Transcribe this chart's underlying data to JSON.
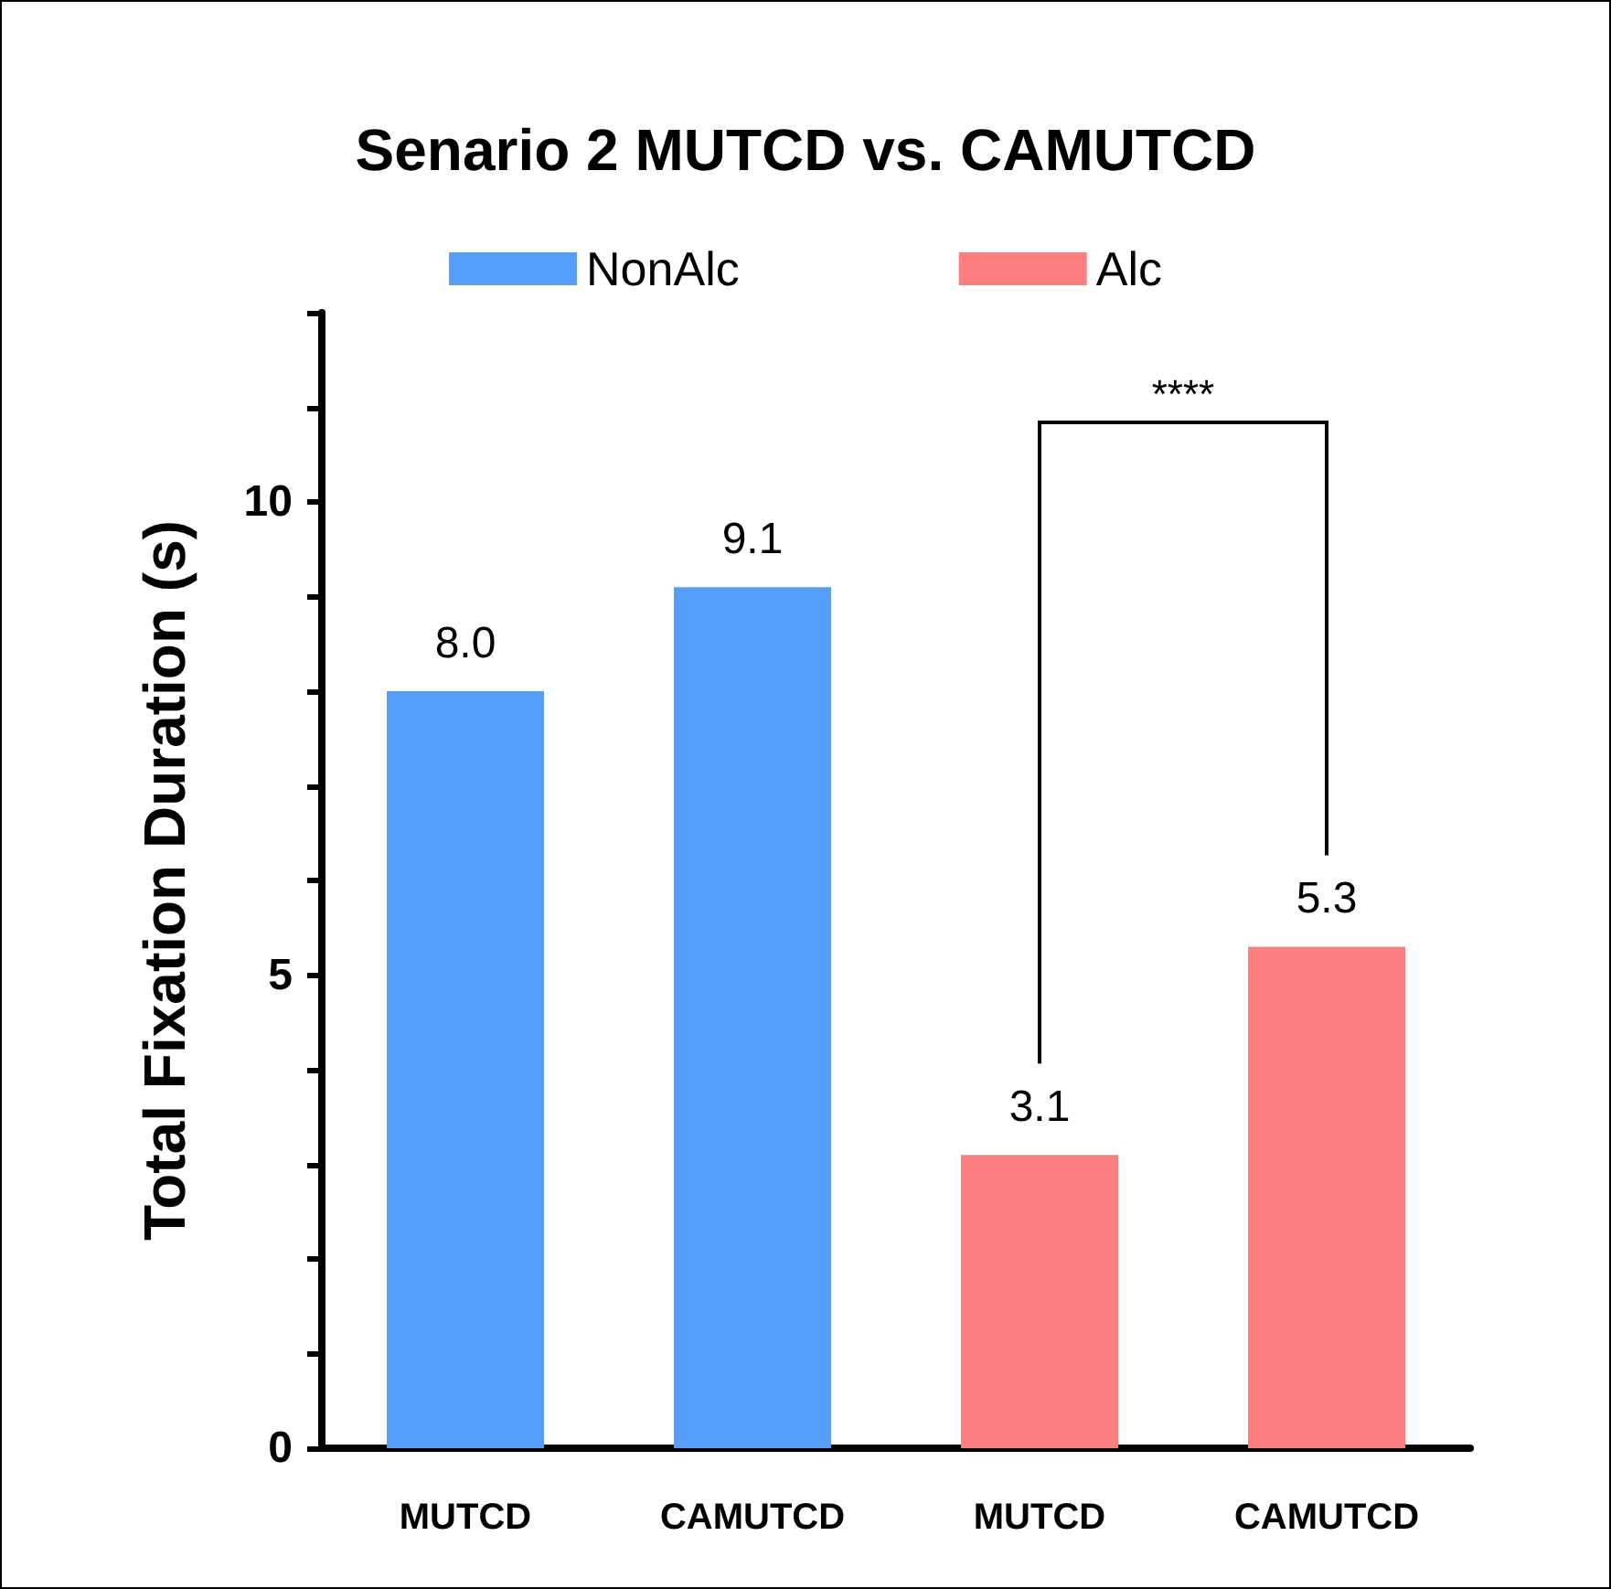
{
  "chart_data": {
    "type": "bar",
    "title": "Senario 2 MUTCD vs. CAMUTCD",
    "ylabel": "Total Fixation Duration (s)",
    "categories": [
      "MUTCD",
      "CAMUTCD",
      "MUTCD",
      "CAMUTCD"
    ],
    "series": [
      {
        "name": "NonAlc",
        "color": "#559ffb",
        "values": [
          8.0,
          9.1,
          null,
          null
        ],
        "value_labels": [
          "8.0",
          "9.1",
          null,
          null
        ]
      },
      {
        "name": "Alc",
        "color": "#fd7f7f",
        "values": [
          null,
          null,
          3.1,
          5.3
        ],
        "value_labels": [
          null,
          null,
          "3.1",
          "5.3"
        ]
      }
    ],
    "ylim": [
      0,
      12
    ],
    "yticks": [
      0,
      {
        "value": 1,
        "label": null
      },
      {
        "value": 2,
        "label": null
      },
      {
        "value": 3,
        "label": null
      },
      {
        "value": 4,
        "label": null
      },
      5,
      {
        "value": 6,
        "label": null
      },
      {
        "value": 7,
        "label": null
      },
      {
        "value": 8,
        "label": null
      },
      {
        "value": 9,
        "label": null
      },
      10,
      {
        "value": 11,
        "label": null
      },
      {
        "value": 12,
        "label": null
      }
    ],
    "annotations": [
      "****"
    ],
    "legend": "top",
    "grid": false
  }
}
